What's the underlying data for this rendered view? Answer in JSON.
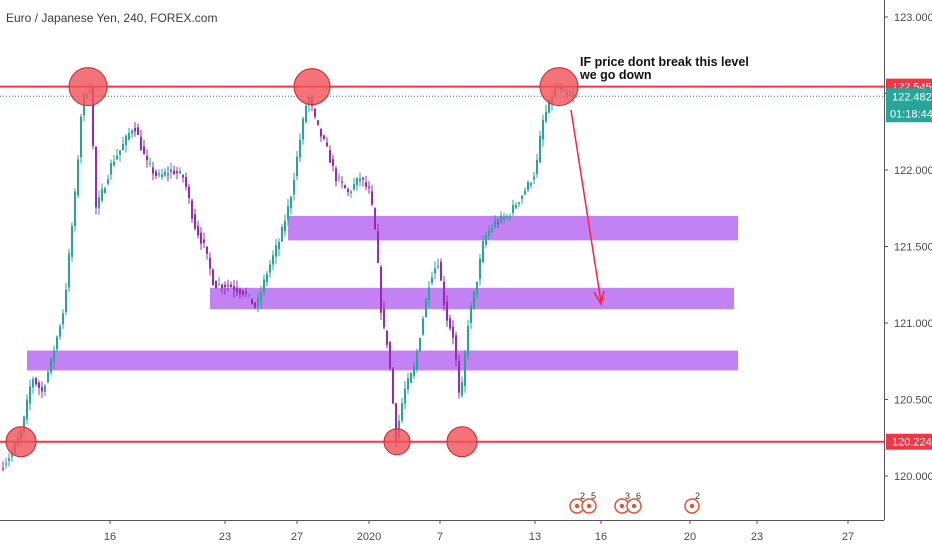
{
  "chart_data": {
    "type": "candlestick",
    "title": "Euro / Japanese Yen, 240, FOREX.com",
    "note_lines": [
      "IF price dont break this level",
      "we go down"
    ],
    "y_axis": {
      "ticks": [
        "123.000",
        "122.500",
        "122.000",
        "121.500",
        "121.000",
        "120.500",
        "120.000"
      ],
      "tick_values": [
        123.0,
        122.5,
        122.0,
        121.5,
        121.0,
        120.5,
        120.0
      ],
      "range": [
        119.64,
        123.26
      ]
    },
    "x_axis": {
      "labels": [
        "16",
        "23",
        "27",
        "2020",
        "7",
        "13",
        "16",
        "20",
        "23",
        "27"
      ]
    },
    "levels": [
      {
        "name": "resistance",
        "value": 122.545,
        "label": "122.545",
        "color": "#f23645"
      },
      {
        "name": "support",
        "value": 120.224,
        "label": "120.224",
        "color": "#f23645"
      }
    ],
    "current": {
      "price": 122.482,
      "label": "122.482",
      "countdown": "01:18:44",
      "color": "#26a69a"
    },
    "zones": [
      {
        "name": "zone-upper",
        "low": 121.54,
        "high": 121.7
      },
      {
        "name": "zone-middle",
        "low": 121.09,
        "high": 121.23
      },
      {
        "name": "zone-lower",
        "low": 120.69,
        "high": 120.82
      }
    ],
    "events": [
      {
        "name": "event-group-1",
        "count": "2",
        "count2": "5"
      },
      {
        "name": "event-group-2",
        "count": "3",
        "count2": "6"
      },
      {
        "name": "event-group-3",
        "count": "2",
        "count2": ""
      }
    ],
    "colors": {
      "bull": "#26a69a",
      "bear": "#9c27b0",
      "zone": "#b76cf2",
      "marker": "#f2545b",
      "arrow": "#ff1f3d"
    }
  }
}
